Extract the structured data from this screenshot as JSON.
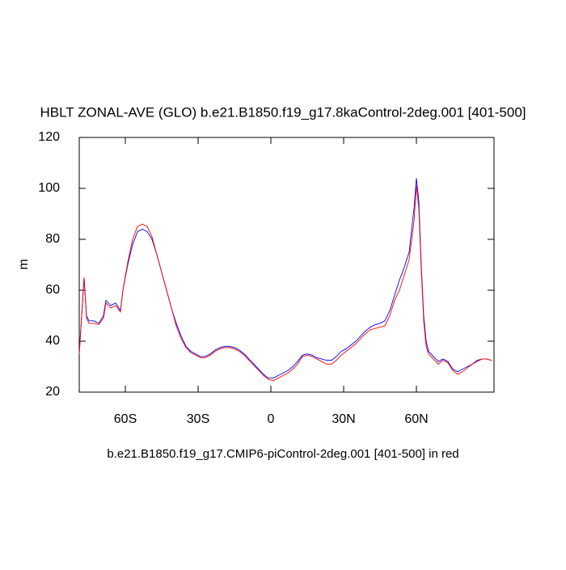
{
  "chart_data": {
    "type": "line",
    "title": "HBLT ZONAL-AVE (GLO) b.e21.B1850.f19_g17.8kaControl-2deg.001 [401-500]",
    "xlabel": "b.e21.B1850.f19_g17.CMIP6-piControl-2deg.001 [401-500] in red",
    "ylabel": "m",
    "x": [
      -79,
      -77,
      -76,
      -75,
      -73,
      -71,
      -69,
      -68,
      -66,
      -64,
      -62,
      -61,
      -59,
      -57,
      -55,
      -53,
      -51,
      -49,
      -47,
      -45,
      -43,
      -41,
      -39,
      -37,
      -35,
      -33,
      -31,
      -29,
      -27,
      -25,
      -23,
      -21,
      -19,
      -17,
      -15,
      -13,
      -11,
      -9,
      -7,
      -5,
      -3,
      -1,
      1,
      3,
      5,
      7,
      9,
      11,
      13,
      15,
      17,
      19,
      21,
      23,
      25,
      27,
      29,
      31,
      33,
      35,
      37,
      39,
      41,
      43,
      45,
      47,
      49,
      51,
      53,
      55,
      57,
      59,
      60,
      61,
      62,
      63,
      64,
      65,
      67,
      69,
      71,
      73,
      75,
      77,
      79,
      81,
      83,
      85,
      87,
      89,
      91
    ],
    "series": [
      {
        "color": "#0000ff",
        "values": [
          35,
          65,
          50,
          48,
          48,
          47,
          50,
          56,
          54,
          55,
          52,
          60,
          70,
          78,
          83,
          84,
          83,
          80,
          74,
          67,
          60,
          53,
          47,
          42,
          38,
          36,
          35,
          34,
          34,
          35,
          36.5,
          37.5,
          38,
          38,
          37.5,
          36.5,
          35,
          33,
          31,
          29,
          27,
          25.5,
          25.5,
          26.5,
          27.5,
          28.5,
          30,
          32,
          34.5,
          35,
          34.5,
          33.5,
          33,
          32.5,
          32.5,
          34,
          36,
          37,
          38.5,
          40,
          42,
          44,
          45.5,
          46.5,
          47,
          48,
          52,
          58,
          64,
          69,
          75,
          92,
          104,
          95,
          70,
          50,
          40,
          36,
          34,
          32,
          33,
          32,
          29,
          28,
          29,
          30,
          31,
          32.5,
          33,
          33,
          32.5
        ]
      },
      {
        "color": "#ff0000",
        "values": [
          35,
          65,
          49,
          47,
          47,
          46.5,
          49,
          55,
          53,
          54,
          51.5,
          60,
          71,
          80,
          85,
          86,
          85,
          81,
          74,
          67,
          60,
          53,
          46,
          41,
          37.5,
          35.5,
          34.5,
          33.5,
          33.5,
          34.5,
          36,
          37,
          37.5,
          37.5,
          37,
          36,
          34.5,
          32.5,
          30.5,
          28.5,
          26.5,
          25,
          24.5,
          25.5,
          26.5,
          27.5,
          29,
          31,
          34,
          34.5,
          34,
          33,
          32,
          31,
          31,
          32.5,
          34.5,
          36,
          37.5,
          39,
          41,
          43,
          44.5,
          45,
          45.5,
          46,
          50,
          56,
          60,
          66,
          72,
          87,
          101,
          92,
          68,
          48,
          38,
          35,
          33,
          31,
          32.5,
          31.5,
          28.5,
          27,
          28,
          29.5,
          31,
          32,
          33,
          33,
          32.5
        ]
      }
    ],
    "xlim": [
      -79,
      92
    ],
    "xticks": [
      {
        "value": -60,
        "label": "60S"
      },
      {
        "value": -30,
        "label": "30S"
      },
      0,
      {
        "value": 30,
        "label": "30N"
      },
      {
        "value": 60,
        "label": "60N"
      }
    ],
    "ylim": [
      20,
      120
    ],
    "yticks": [
      20,
      40,
      60,
      80,
      100,
      120
    ]
  }
}
